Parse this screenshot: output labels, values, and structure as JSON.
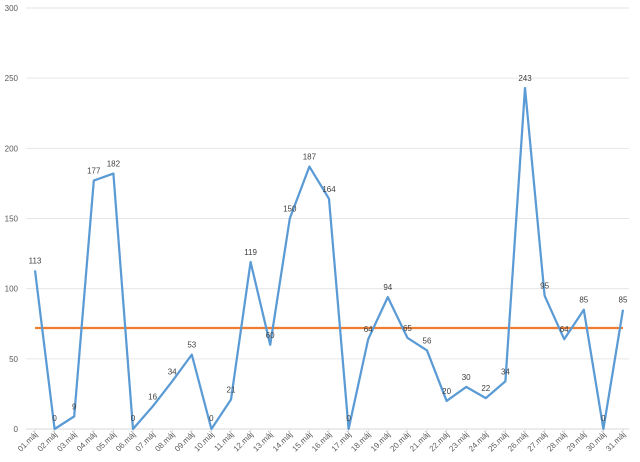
{
  "chart_data": {
    "type": "line",
    "categories": [
      "01.máj",
      "02.máj",
      "03.máj",
      "04.máj",
      "05.máj",
      "06.máj",
      "07.máj",
      "08.máj",
      "09.máj",
      "10.máj",
      "11.máj",
      "12.máj",
      "13.máj",
      "14.máj",
      "15.máj",
      "16.máj",
      "17.máj",
      "18.máj",
      "19.máj",
      "20.máj",
      "21.máj",
      "22.máj",
      "23.máj",
      "24.máj",
      "25.máj",
      "26.máj",
      "27.máj",
      "28.máj",
      "29.máj",
      "30.máj",
      "31.máj"
    ],
    "series": [
      {
        "values": [
          113,
          0,
          9,
          177,
          182,
          0,
          16,
          34,
          53,
          0,
          21,
          119,
          60,
          150,
          187,
          164,
          0,
          64,
          94,
          65,
          56,
          20,
          30,
          22,
          34,
          243,
          95,
          64,
          85,
          0,
          85
        ],
        "labels": [
          "113",
          "0",
          "9",
          "177",
          "182",
          "0",
          "16",
          "34",
          "53",
          "0",
          "21",
          "119",
          "60",
          "150",
          "187",
          "164",
          "0",
          "64",
          "94",
          "65",
          "56",
          "20",
          "30",
          "22",
          "34",
          "243",
          "95",
          "64",
          "85",
          "0",
          "85"
        ],
        "color": "#5b9bd5"
      },
      {
        "values": [
          72,
          72,
          72,
          72,
          72,
          72,
          72,
          72,
          72,
          72,
          72,
          72,
          72,
          72,
          72,
          72,
          72,
          72,
          72,
          72,
          72,
          72,
          72,
          72,
          72,
          72,
          72,
          72,
          72,
          72,
          72
        ],
        "color": "#ed7d31"
      }
    ],
    "yticks": [
      "0",
      "50",
      "100",
      "150",
      "200",
      "250",
      "300"
    ],
    "ylim": [
      0,
      300
    ],
    "grid": true,
    "legend": "none"
  }
}
